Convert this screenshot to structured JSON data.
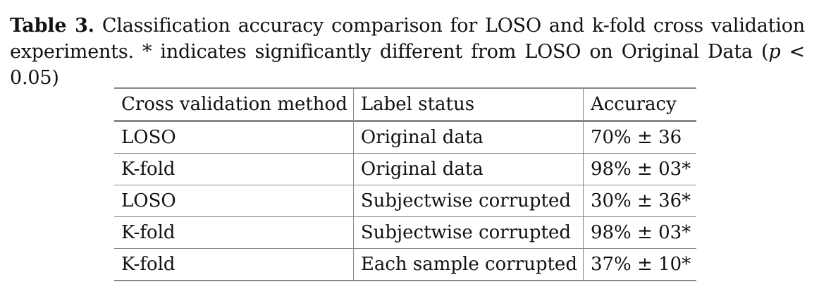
{
  "caption": {
    "label": "Table 3.",
    "text_before_math": " Classification accuracy comparison for LOSO and k-fold cross validation experiments. * indicates significantly different from LOSO on Original Data (",
    "math_var": "p",
    "math_rest": " < 0.05)"
  },
  "table": {
    "headers": [
      "Cross validation method",
      "Label status",
      "Accuracy"
    ],
    "rows": [
      [
        "LOSO",
        "Original data",
        "70% ± 36"
      ],
      [
        "K-fold",
        "Original data",
        "98% ± 03*"
      ],
      [
        "LOSO",
        "Subjectwise corrupted",
        "30% ± 36*"
      ],
      [
        "K-fold",
        "Subjectwise corrupted",
        "98% ± 03*"
      ],
      [
        "K-fold",
        "Each sample corrupted",
        "37% ± 10*"
      ]
    ]
  }
}
